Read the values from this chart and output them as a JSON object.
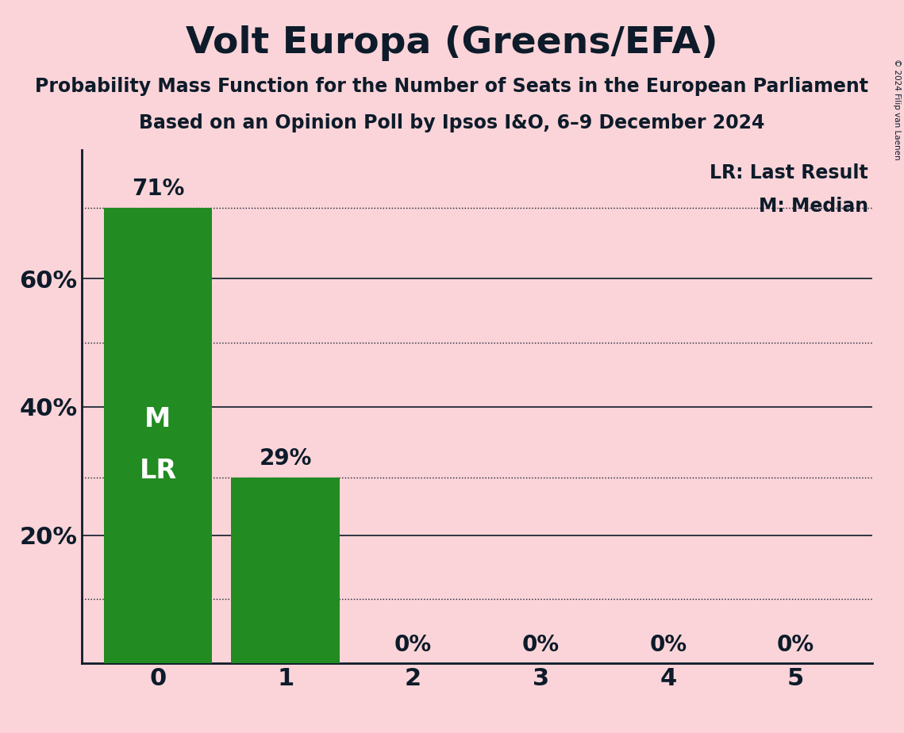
{
  "title": "Volt Europa (Greens/EFA)",
  "subtitle1": "Probability Mass Function for the Number of Seats in the European Parliament",
  "subtitle2": "Based on an Opinion Poll by Ipsos I&O, 6–9 December 2024",
  "copyright": "© 2024 Filip van Laenen",
  "categories": [
    0,
    1,
    2,
    3,
    4,
    5
  ],
  "values": [
    0.71,
    0.29,
    0.0,
    0.0,
    0.0,
    0.0
  ],
  "bar_color": "#228B22",
  "background_color": "#FAD4D8",
  "text_color": "#0D1B2A",
  "bar_labels": [
    "71%",
    "29%",
    "0%",
    "0%",
    "0%",
    "0%"
  ],
  "ytick_labels": [
    "",
    "20%",
    "40%",
    "60%"
  ],
  "yticks": [
    0.0,
    0.2,
    0.4,
    0.6
  ],
  "ylim": [
    0,
    0.8
  ],
  "dotted_lines": [
    0.71,
    0.5,
    0.29,
    0.1
  ],
  "solid_lines": [
    0.6,
    0.4,
    0.2
  ],
  "legend_lr": "LR: Last Result",
  "legend_m": "M: Median",
  "figsize": [
    11.39,
    9.24
  ],
  "dpi": 100,
  "title_fontsize": 34,
  "subtitle_fontsize": 17,
  "tick_fontsize": 22,
  "bar_label_fontsize": 20,
  "legend_fontsize": 17,
  "ml_fontsize": 24
}
